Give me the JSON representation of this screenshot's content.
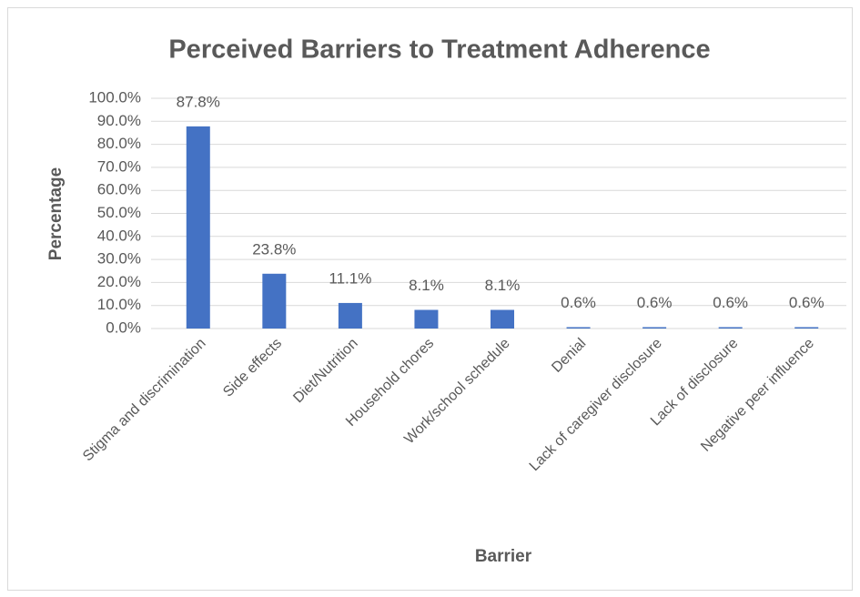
{
  "chart_data": {
    "type": "bar",
    "title": "Perceived Barriers to Treatment Adherence",
    "x_label": "Barrier",
    "y_label": "Percentage",
    "categories": [
      "Stigma and discrimination",
      "Side effects",
      "Diet/Nutrition",
      "Household chores",
      "Work/school schedule",
      "Denial",
      "Lack of caregiver disclosure",
      "Lack of disclosure",
      "Negative peer influence"
    ],
    "values": [
      87.8,
      23.8,
      11.1,
      8.1,
      8.1,
      0.6,
      0.6,
      0.6,
      0.6
    ],
    "value_labels": [
      "87.8%",
      "23.8%",
      "11.1%",
      "8.1%",
      "8.1%",
      "0.6%",
      "0.6%",
      "0.6%",
      "0.6%"
    ],
    "color": "#4472c4",
    "ylim": [
      0,
      100
    ],
    "yticks": [
      {
        "value": 0,
        "label": "0.0%"
      },
      {
        "value": 10,
        "label": "10.0%"
      },
      {
        "value": 20,
        "label": "20.0%"
      },
      {
        "value": 30,
        "label": "30.0%"
      },
      {
        "value": 40,
        "label": "40.0%"
      },
      {
        "value": 50,
        "label": "50.0%"
      },
      {
        "value": 60,
        "label": "60.0%"
      },
      {
        "value": 70,
        "label": "70.0%"
      },
      {
        "value": 80,
        "label": "80.0%"
      },
      {
        "value": 90,
        "label": "90.0%"
      },
      {
        "value": 100,
        "label": "100.0%"
      }
    ],
    "grid": true
  }
}
